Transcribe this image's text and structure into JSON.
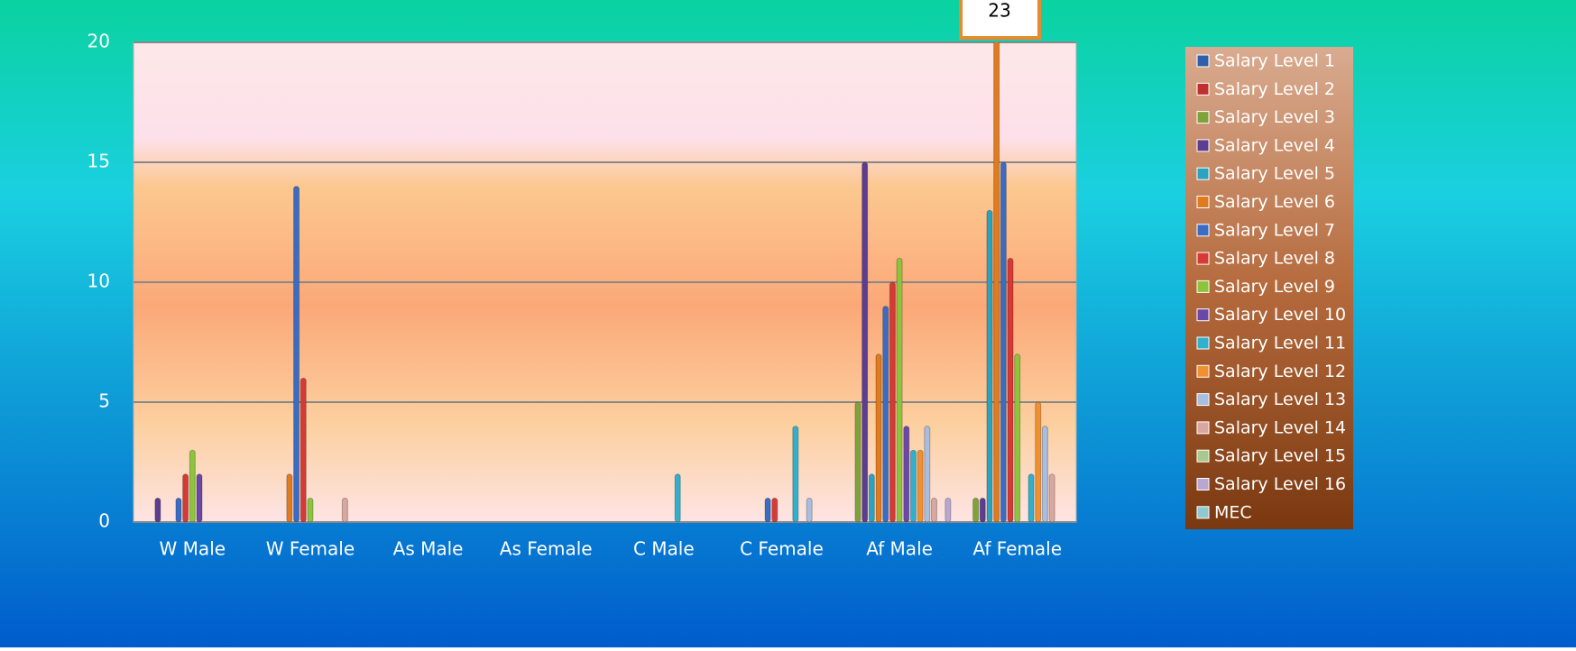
{
  "chart_data": {
    "type": "bar",
    "categories": [
      "W Male",
      "W Female",
      "As Male",
      "As Female",
      "C Male",
      "C Female",
      "Af Male",
      "Af Female"
    ],
    "ylim": [
      0,
      20
    ],
    "yticks": [
      0,
      5,
      10,
      15,
      20
    ],
    "grid": true,
    "legend": "right",
    "series": [
      {
        "name": "Salary Level 1",
        "color": "#2e5fa8",
        "values": [
          0,
          0,
          0,
          0,
          0,
          0,
          0,
          0
        ]
      },
      {
        "name": "Salary Level 2",
        "color": "#c0302e",
        "values": [
          0,
          0,
          0,
          0,
          0,
          0,
          0,
          0
        ]
      },
      {
        "name": "Salary Level 3",
        "color": "#7fa33a",
        "values": [
          0,
          0,
          0,
          0,
          0,
          0,
          5,
          1
        ]
      },
      {
        "name": "Salary Level 4",
        "color": "#5c3d8f",
        "values": [
          1,
          0,
          0,
          0,
          0,
          0,
          15,
          1
        ]
      },
      {
        "name": "Salary Level 5",
        "color": "#2aa3c0",
        "values": [
          0,
          0,
          0,
          0,
          0,
          0,
          2,
          13
        ]
      },
      {
        "name": "Salary Level 6",
        "color": "#e07b20",
        "values": [
          0,
          2,
          0,
          0,
          0,
          0,
          7,
          23
        ],
        "value_labels": [
          null,
          null,
          null,
          null,
          null,
          null,
          null,
          "23"
        ]
      },
      {
        "name": "Salary Level 7",
        "color": "#3a6cc4",
        "values": [
          1,
          14,
          0,
          0,
          0,
          1,
          9,
          15
        ]
      },
      {
        "name": "Salary Level 8",
        "color": "#d63a35",
        "values": [
          2,
          6,
          0,
          0,
          0,
          1,
          10,
          11
        ]
      },
      {
        "name": "Salary Level 9",
        "color": "#8cc43c",
        "values": [
          3,
          1,
          0,
          0,
          0,
          0,
          11,
          7
        ]
      },
      {
        "name": "Salary Level 10",
        "color": "#6a48a8",
        "values": [
          2,
          0,
          0,
          0,
          0,
          0,
          4,
          0
        ]
      },
      {
        "name": "Salary Level 11",
        "color": "#30b0cc",
        "values": [
          0,
          0,
          0,
          0,
          2,
          4,
          3,
          2
        ]
      },
      {
        "name": "Salary Level 12",
        "color": "#f09030",
        "values": [
          0,
          0,
          0,
          0,
          0,
          0,
          3,
          5
        ]
      },
      {
        "name": "Salary Level 13",
        "color": "#a8bde0",
        "values": [
          0,
          0,
          0,
          0,
          0,
          1,
          4,
          4
        ]
      },
      {
        "name": "Salary Level 14",
        "color": "#d8a8a0",
        "values": [
          0,
          1,
          0,
          0,
          0,
          0,
          1,
          2
        ]
      },
      {
        "name": "Salary Level 15",
        "color": "#a8c890",
        "values": [
          0,
          0,
          0,
          0,
          0,
          0,
          0,
          0
        ]
      },
      {
        "name": "Salary Level 16",
        "color": "#b8a8d0",
        "values": [
          0,
          0,
          0,
          0,
          0,
          0,
          1,
          0
        ]
      },
      {
        "name": "MEC",
        "color": "#90c8d0",
        "values": [
          0,
          0,
          0,
          0,
          0,
          0,
          0,
          0
        ]
      }
    ]
  }
}
